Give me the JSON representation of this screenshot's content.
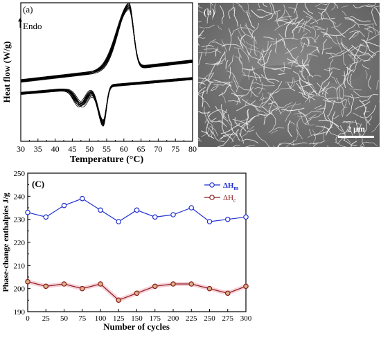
{
  "chart_data": [
    {
      "type": "line",
      "panel_label": "(a)",
      "annotation": "Endo",
      "xlabel": "Temperature (°C)",
      "ylabel": "Heat flow (W/g)",
      "xlim": [
        30,
        80
      ],
      "x_ticks": [
        "30",
        "35",
        "40",
        "45",
        "50",
        "55",
        "60",
        "65",
        "70",
        "75",
        "80"
      ],
      "y_ticks_shown": false,
      "heating_peak_c": 61.5,
      "cooling_peaks_c": [
        47.5,
        54.0
      ],
      "cycles_overlaid": 13
    },
    {
      "type": "image",
      "panel_label": "(b)",
      "scale_bar": "2 μm"
    },
    {
      "type": "line",
      "panel_label": "(C)",
      "xlabel": "Number of cycles",
      "ylabel": "Phase-change enthalpies J/g",
      "xlim": [
        0,
        300
      ],
      "ylim": [
        190,
        250
      ],
      "x_ticks": [
        0,
        25,
        50,
        75,
        100,
        125,
        150,
        175,
        200,
        225,
        250,
        275,
        300
      ],
      "y_ticks": [
        190,
        200,
        210,
        220,
        230,
        240,
        250
      ],
      "x": [
        0,
        25,
        50,
        75,
        100,
        125,
        150,
        175,
        200,
        225,
        250,
        275,
        300
      ],
      "series": [
        {
          "name": "ΔHm",
          "name_main": "ΔH",
          "name_sub": "m",
          "color": "#1f2fd0",
          "values": [
            233,
            231,
            236,
            239,
            234,
            229,
            234,
            231,
            232,
            235,
            229,
            230,
            231
          ]
        },
        {
          "name": "ΔHc",
          "name_main": "ΔH",
          "name_sub": "c",
          "color": "#8b1a1a",
          "values": [
            203,
            201,
            202,
            200,
            202,
            195,
            198,
            201,
            202,
            202,
            200,
            198,
            201
          ]
        }
      ],
      "legend_position": "top-right"
    }
  ]
}
